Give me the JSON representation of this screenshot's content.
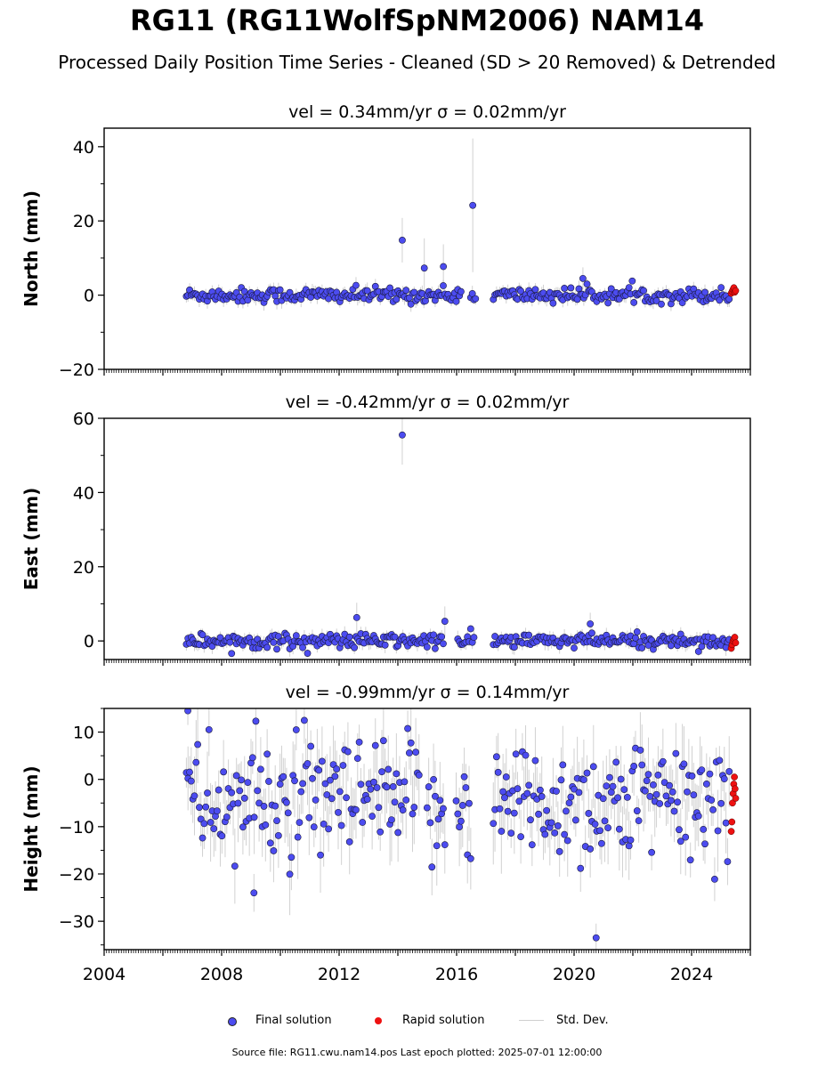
{
  "title": "RG11 (RG11WolfSpNM2006) NAM14",
  "subtitle": "Processed Daily Position Time Series - Cleaned (SD > 20 Removed) & Detrended",
  "chart_data": [
    {
      "type": "scatter",
      "panel_title": "vel = 0.34mm/yr   σ = 0.02mm/yr",
      "ylabel": "North (mm)",
      "xlim": [
        2004,
        2026
      ],
      "ylim": [
        -20,
        45
      ],
      "yticks": [
        -20,
        0,
        20,
        40
      ],
      "yticklabels": [
        "−20",
        "0",
        "20",
        "40"
      ],
      "final_range": [
        2006.8,
        2025.3
      ],
      "gaps": [
        [
          2016.2,
          2016.45
        ],
        [
          2016.7,
          2017.2
        ]
      ],
      "scatter_sd": 1.0,
      "errbar_halfwidth": 1.5,
      "outliers": [
        [
          2014.15,
          14.8,
          6
        ],
        [
          2014.9,
          7.3,
          8
        ],
        [
          2015.55,
          7.7,
          6
        ],
        [
          2016.55,
          24.2,
          18
        ],
        [
          2020.3,
          4.5,
          3
        ]
      ],
      "rapid": {
        "x_range": [
          2025.35,
          2025.5
        ],
        "values": [
          0.5,
          1.0,
          1.5,
          2.0,
          0.8,
          1.2
        ]
      }
    },
    {
      "type": "scatter",
      "panel_title": "vel = -0.42mm/yr   σ = 0.02mm/yr",
      "ylabel": "East (mm)",
      "xlim": [
        2004,
        2026
      ],
      "ylim": [
        -5,
        60
      ],
      "yticks": [
        0,
        20,
        40,
        60
      ],
      "yticklabels": [
        "0",
        "20",
        "40",
        "60"
      ],
      "final_range": [
        2006.8,
        2025.3
      ],
      "gaps": [
        [
          2015.6,
          2016.0
        ],
        [
          2016.6,
          2017.2
        ]
      ],
      "scatter_sd": 1.0,
      "errbar_halfwidth": 1.5,
      "outliers": [
        [
          2014.15,
          55.5,
          8
        ],
        [
          2012.6,
          6.3,
          4
        ],
        [
          2015.6,
          5.3,
          4
        ],
        [
          2020.55,
          4.6,
          3
        ]
      ],
      "rapid": {
        "x_range": [
          2025.35,
          2025.5
        ],
        "values": [
          -2.0,
          -1.0,
          0.0,
          0.5,
          1.0,
          -0.5
        ]
      }
    },
    {
      "type": "scatter",
      "panel_title": "vel = -0.99mm/yr   σ = 0.14mm/yr",
      "ylabel": "Height (mm)",
      "xlim": [
        2004,
        2026
      ],
      "ylim": [
        -36,
        15
      ],
      "yticks": [
        -30,
        -20,
        -10,
        0,
        10
      ],
      "yticklabels": [
        "−30",
        "−20",
        "−10",
        "0",
        "10"
      ],
      "xticks": [
        2004,
        2008,
        2012,
        2016,
        2020,
        2024
      ],
      "final_range": [
        2006.8,
        2025.3
      ],
      "gaps": [
        [
          2014.75,
          2014.95
        ],
        [
          2015.65,
          2015.95
        ],
        [
          2016.5,
          2017.2
        ]
      ],
      "scatter_sd": 6.5,
      "mean": -5,
      "errbar_halfwidth": 6,
      "outliers": [
        [
          2020.75,
          -33.5,
          3
        ],
        [
          2006.85,
          14.5,
          3
        ],
        [
          2009.1,
          -24,
          4
        ]
      ],
      "rapid": {
        "x_range": [
          2025.35,
          2025.5
        ],
        "values": [
          -11,
          -9,
          -5,
          -3,
          -1,
          0.5,
          -2,
          -4
        ]
      }
    }
  ],
  "legend": {
    "final": "Final solution",
    "rapid": "Rapid solution",
    "std": "Std. Dev.",
    "colors": {
      "final": "#4c4cf0",
      "rapid": "#ee1111",
      "std": "#cfcfcf"
    }
  },
  "source_text": "Source file: RG11.cwu.nam14.pos  Last epoch plotted: 2025-07-01 12:00:00"
}
